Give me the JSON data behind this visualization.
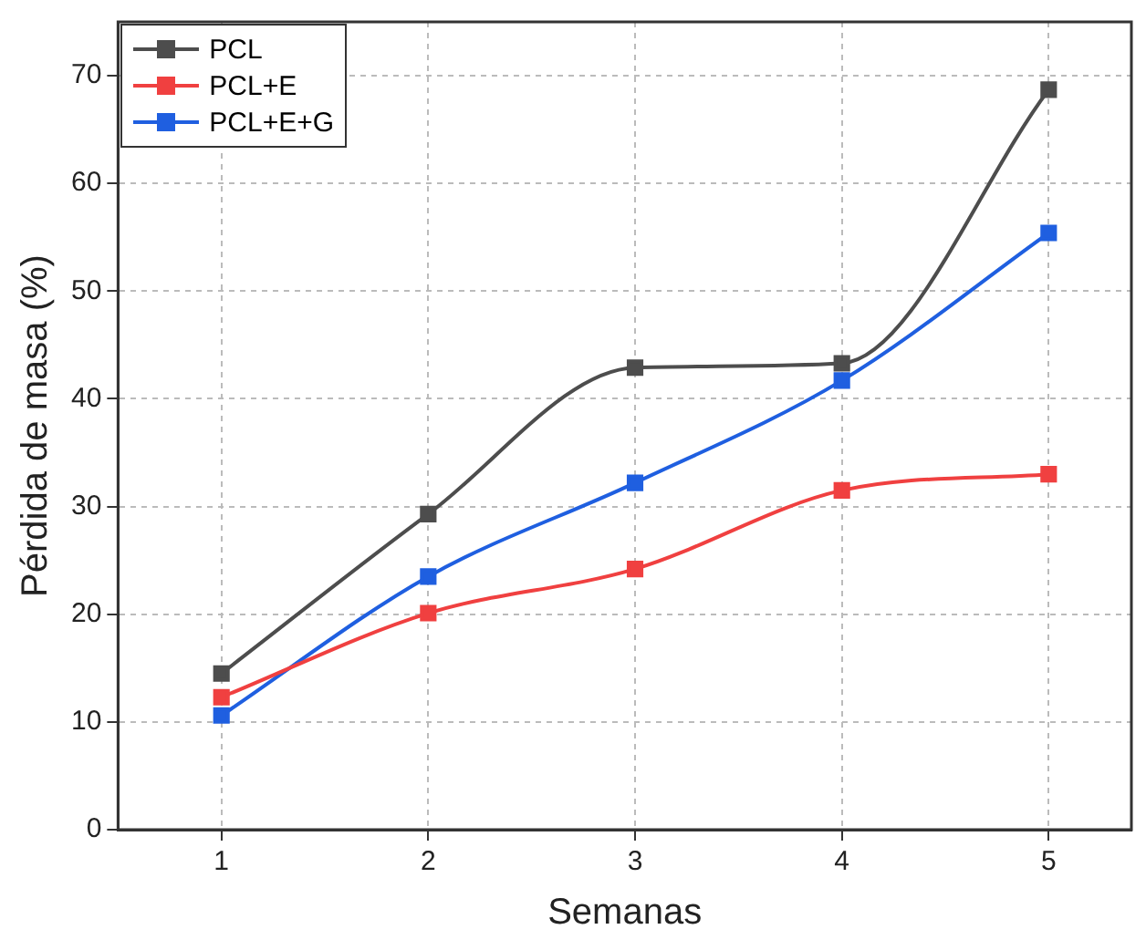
{
  "chart_data": {
    "type": "line",
    "xlabel": "Semanas",
    "ylabel": "Pérdida de masa (%)",
    "x": [
      1,
      2,
      3,
      4,
      5
    ],
    "series": [
      {
        "name": "PCL",
        "color": "#4d4d4d",
        "values": [
          14.5,
          29.3,
          42.9,
          43.3,
          68.7
        ]
      },
      {
        "name": "PCL+E",
        "color": "#f04040",
        "values": [
          12.3,
          20.1,
          24.2,
          31.5,
          33.0
        ]
      },
      {
        "name": "PCL+E+G",
        "color": "#1f5fe0",
        "values": [
          10.6,
          23.5,
          32.2,
          41.7,
          55.4
        ]
      }
    ],
    "xlim": [
      0.5,
      5.4
    ],
    "xticks": [
      1,
      2,
      3,
      4,
      5
    ],
    "ylim": [
      0,
      75
    ],
    "yticks": [
      0,
      10,
      20,
      30,
      40,
      50,
      60,
      70
    ],
    "grid": true,
    "legend": "top left",
    "marker": "square",
    "line_style": "solid"
  }
}
